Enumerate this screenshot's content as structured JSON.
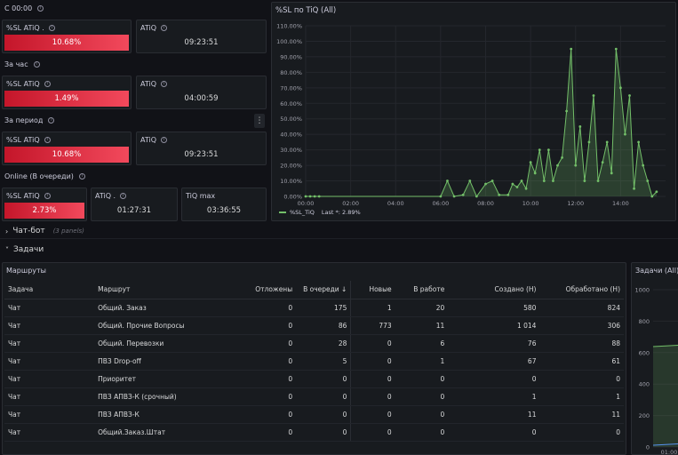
{
  "rows": {
    "c0000": "С 00:00",
    "hour": "За час",
    "period": "За период",
    "online": "Online (В очереди)"
  },
  "stats": {
    "c0000": {
      "sl_title": "%SL ATiQ .",
      "sl_value": "10.68%",
      "atiq_title": "ATiQ",
      "atiq_value": "09:23:51"
    },
    "hour": {
      "sl_title": "%SL ATiQ",
      "sl_value": "1.49%",
      "atiq_title": "ATiQ",
      "atiq_value": "04:00:59"
    },
    "period": {
      "sl_title": "%SL ATiQ",
      "sl_value": "10.68%",
      "atiq_title": "ATiQ",
      "atiq_value": "09:23:51"
    },
    "online": {
      "sl_title": "%SL ATiQ",
      "sl_value": "2.73%",
      "atiq_title": "ATiQ .",
      "atiq_value": "01:27:31",
      "tiq_title": "TiQ max",
      "tiq_value": "03:36:55"
    }
  },
  "chart_panel": {
    "title": "%SL по TiQ (All)",
    "legend": "%SL_TiQ",
    "legend_last": "Last *: 2.89%"
  },
  "chart_data": {
    "type": "line",
    "title": "%SL по TiQ (All)",
    "y_ticks": [
      "110.00%",
      "100.00%",
      "90.00%",
      "80.00%",
      "70.00%",
      "60.00%",
      "50.00%",
      "40.00%",
      "30.00%",
      "20.00%",
      "10.00%",
      "0.00%"
    ],
    "x_ticks": [
      "00:00",
      "02:00",
      "04:00",
      "06:00",
      "08:00",
      "10:00",
      "12:00",
      "14:00"
    ],
    "ylim": [
      0,
      110
    ],
    "xlim": [
      0,
      16
    ],
    "series": [
      {
        "name": "%SL_TiQ",
        "color": "#73bf69",
        "x": [
          0.0,
          0.2,
          0.4,
          0.6,
          6.0,
          6.3,
          6.6,
          7.0,
          7.3,
          7.6,
          8.0,
          8.3,
          8.6,
          9.0,
          9.2,
          9.4,
          9.6,
          9.8,
          10.0,
          10.2,
          10.4,
          10.6,
          10.8,
          11.0,
          11.2,
          11.4,
          11.6,
          11.8,
          12.0,
          12.2,
          12.4,
          12.6,
          12.8,
          13.0,
          13.2,
          13.4,
          13.6,
          13.8,
          14.0,
          14.2,
          14.4,
          14.6,
          14.8,
          15.0,
          15.2,
          15.4,
          15.6
        ],
        "y": [
          0,
          0,
          0,
          0,
          0,
          10,
          0,
          1,
          10,
          0,
          8,
          10,
          1,
          1,
          8,
          6,
          10,
          5,
          22,
          15,
          30,
          10,
          30,
          10,
          20,
          25,
          55,
          95,
          20,
          45,
          10,
          35,
          65,
          10,
          22,
          35,
          15,
          95,
          70,
          40,
          65,
          5,
          35,
          20,
          10,
          0,
          3
        ]
      }
    ]
  },
  "sections": {
    "chatbot": "Чат-бот",
    "chatbot_count": "(3 panels)",
    "tasks": "Задачи"
  },
  "routes_panel": {
    "title": "Маршруты",
    "columns": [
      "Задача",
      "Маршрут",
      "Отложены",
      "В очереди ↓",
      "Новые",
      "В работе",
      "Создано (Н)",
      "Обработано (Н)"
    ],
    "rows": [
      [
        "Чат",
        "Общий. Заказ",
        "0",
        "175",
        "1",
        "20",
        "580",
        "824"
      ],
      [
        "Чат",
        "Общий. Прочие Вопросы",
        "0",
        "86",
        "773",
        "11",
        "1 014",
        "306"
      ],
      [
        "Чат",
        "Общий. Перевозки",
        "0",
        "28",
        "0",
        "6",
        "76",
        "88"
      ],
      [
        "Чат",
        "ПВЗ Drop-off",
        "0",
        "5",
        "0",
        "1",
        "67",
        "61"
      ],
      [
        "Чат",
        "Приоритет",
        "0",
        "0",
        "0",
        "0",
        "0",
        "0"
      ],
      [
        "Чат",
        "ПВЗ АПВЗ-К (срочный)",
        "0",
        "0",
        "0",
        "0",
        "1",
        "1"
      ],
      [
        "Чат",
        "ПВЗ АПВЗ-К",
        "0",
        "0",
        "0",
        "0",
        "11",
        "11"
      ],
      [
        "Чат",
        "Общий.Заказ.Штат",
        "0",
        "0",
        "0",
        "0",
        "0",
        "0"
      ]
    ]
  },
  "tasks_panel": {
    "title": "Задачи (All)",
    "y_ticks": [
      "1000",
      "800",
      "600",
      "400",
      "200",
      "0"
    ],
    "x_tick": "01:00"
  }
}
